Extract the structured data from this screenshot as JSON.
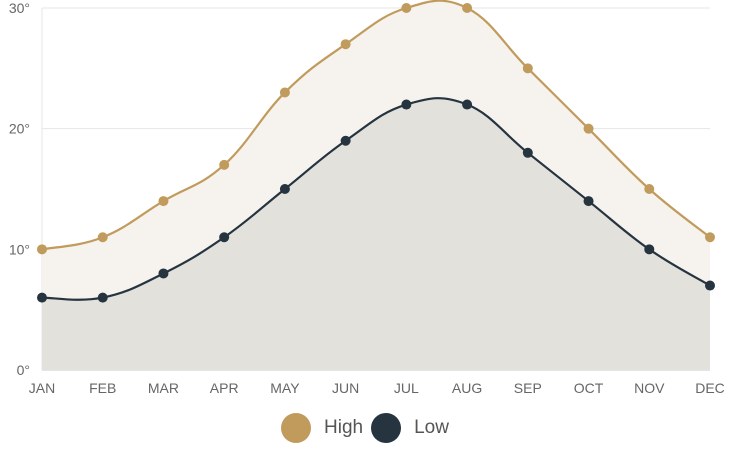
{
  "chart_data": {
    "type": "area",
    "categories": [
      "JAN",
      "FEB",
      "MAR",
      "APR",
      "MAY",
      "JUN",
      "JUL",
      "AUG",
      "SEP",
      "OCT",
      "NOV",
      "DEC"
    ],
    "series": [
      {
        "name": "High",
        "values": [
          10,
          11,
          14,
          17,
          23,
          27,
          30,
          30,
          25,
          20,
          15,
          11
        ],
        "color": "#c19b5c",
        "fill": "#f6f3ee"
      },
      {
        "name": "Low",
        "values": [
          6,
          6,
          8,
          11,
          15,
          19,
          22,
          22,
          18,
          14,
          10,
          7
        ],
        "color": "#25343f",
        "fill": "#e3e1dc"
      }
    ],
    "y_ticks": [
      "0°",
      "10°",
      "20°",
      "30°"
    ],
    "y_tick_values": [
      0,
      10,
      20,
      30
    ],
    "ylim": [
      0,
      30
    ],
    "grid": true,
    "legend_position": "bottom-center"
  }
}
